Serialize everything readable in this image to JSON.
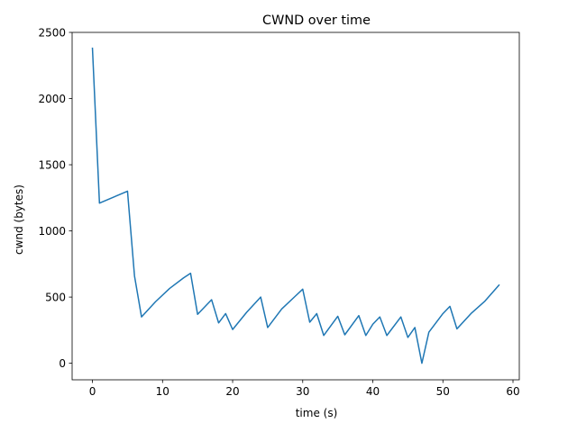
{
  "chart_data": {
    "type": "line",
    "title": "CWND over time",
    "xlabel": "time (s)",
    "ylabel": "cwnd (bytes)",
    "xlim": [
      -2.9,
      60.9
    ],
    "ylim": [
      -125,
      2500
    ],
    "xticks": [
      0,
      10,
      20,
      30,
      40,
      50,
      60
    ],
    "yticks": [
      0,
      500,
      1000,
      1500,
      2000,
      2500
    ],
    "grid": false,
    "line_color": "#1f77b4",
    "series": [
      {
        "x": [
          0,
          1,
          5,
          6,
          7,
          9,
          11,
          13,
          14,
          15,
          17,
          18,
          19,
          20,
          22,
          24,
          25,
          27,
          29,
          30,
          31,
          32,
          33,
          35,
          36,
          38,
          39,
          40,
          41,
          42,
          44,
          45,
          46,
          47,
          48,
          50,
          51,
          52,
          54,
          56,
          58
        ],
        "y": [
          2380,
          1210,
          1300,
          660,
          350,
          465,
          565,
          645,
          680,
          370,
          480,
          305,
          375,
          255,
          385,
          500,
          270,
          410,
          510,
          560,
          310,
          375,
          210,
          355,
          215,
          360,
          210,
          295,
          350,
          210,
          350,
          195,
          270,
          0,
          235,
          375,
          430,
          260,
          375,
          470,
          590
        ]
      }
    ]
  }
}
